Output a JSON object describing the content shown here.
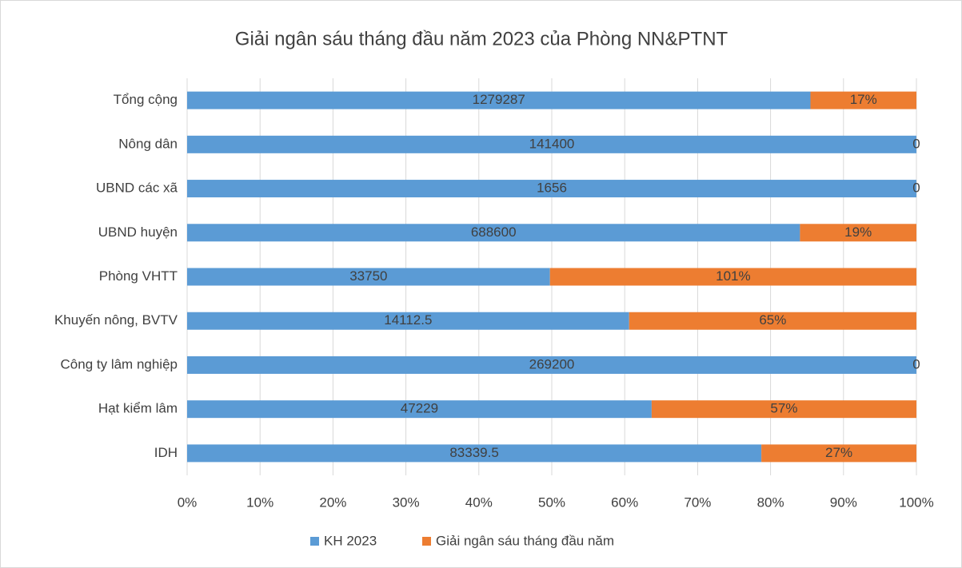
{
  "chart_data": {
    "type": "bar",
    "orientation": "horizontal",
    "stacking": "percent",
    "title": "Giải ngân sáu tháng đầu năm 2023 của Phòng NN&PTNT",
    "categories": [
      "Tổng cộng",
      "Nông dân",
      "UBND các xã",
      "UBND huyện",
      "Phòng VHTT",
      "Khuyến nông, BVTV",
      "Công ty lâm nghiệp",
      "Hạt kiểm lâm",
      "IDH"
    ],
    "series": [
      {
        "name": "KH 2023",
        "color": "#5b9bd5",
        "values": [
          1279287,
          141400,
          1656,
          688600,
          33750,
          14112.5,
          269200,
          47229,
          83339.5
        ]
      },
      {
        "name": "Giải ngân sáu tháng đầu năm",
        "color": "#ed7d31",
        "values": [
          17,
          0,
          0,
          19,
          101,
          65,
          0,
          57,
          27
        ],
        "value_labels": [
          "17%",
          "0",
          "0",
          "19%",
          "101%",
          "65%",
          "0",
          "57%",
          "27%"
        ]
      }
    ],
    "xlim": [
      0,
      100
    ],
    "xticks": [
      {
        "value": 0,
        "label": "0%"
      },
      {
        "value": 10,
        "label": "10%"
      },
      {
        "value": 20,
        "label": "20%"
      },
      {
        "value": 30,
        "label": "30%"
      },
      {
        "value": 40,
        "label": "40%"
      },
      {
        "value": 50,
        "label": "50%"
      },
      {
        "value": 60,
        "label": "60%"
      },
      {
        "value": 70,
        "label": "70%"
      },
      {
        "value": 80,
        "label": "80%"
      },
      {
        "value": 90,
        "label": "90%"
      },
      {
        "value": 100,
        "label": "100%"
      }
    ],
    "grid": true,
    "legend": "bottom"
  }
}
